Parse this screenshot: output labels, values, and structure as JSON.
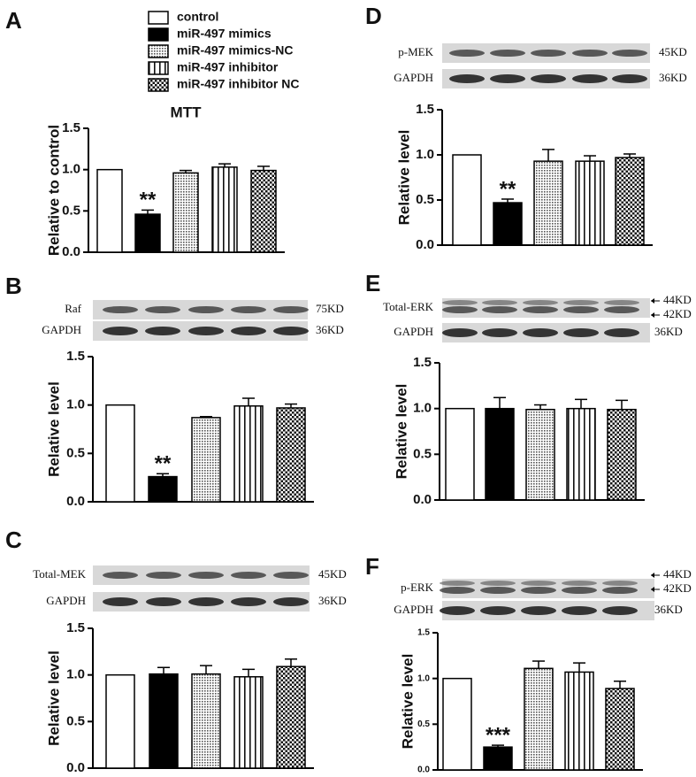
{
  "legend": [
    "control",
    "miR-497 mimics",
    "miR-497 mimics-NC",
    "miR-497 inhibitor",
    "miR-497 inhibitor NC"
  ],
  "chart_data": [
    {
      "type": "bar",
      "label": "A",
      "title": "MTT",
      "ylabel": "Relative to control",
      "values": [
        1.0,
        0.46,
        0.96,
        1.03,
        0.99
      ],
      "errors": [
        null,
        0.05,
        0.03,
        0.04,
        0.05
      ],
      "annotations": [
        null,
        "**",
        null,
        null,
        null
      ],
      "ylim": [
        0,
        1.5
      ],
      "yticks": [
        {
          "value": 0,
          "label": "0.0"
        },
        {
          "value": 0.5,
          "label": "0.5"
        },
        {
          "value": 1,
          "label": "1.0"
        },
        {
          "value": 1.5,
          "label": "1.5"
        }
      ]
    },
    {
      "type": "bar",
      "label": "B",
      "ylabel": "Relative level",
      "blot": [
        {
          "label": "Raf",
          "sizes": [
            "75KD"
          ]
        },
        {
          "label": "GAPDH",
          "sizes": [
            "36KD"
          ]
        }
      ],
      "values": [
        1.0,
        0.26,
        0.87,
        0.99,
        0.97
      ],
      "errors": [
        null,
        0.03,
        0.01,
        0.08,
        0.04
      ],
      "annotations": [
        null,
        "**",
        null,
        null,
        null
      ],
      "ylim": [
        0,
        1.5
      ],
      "yticks": [
        {
          "value": 0,
          "label": "0.0"
        },
        {
          "value": 0.5,
          "label": "0.5"
        },
        {
          "value": 1,
          "label": "1.0"
        },
        {
          "value": 1.5,
          "label": "1.5"
        }
      ]
    },
    {
      "type": "bar",
      "label": "C",
      "ylabel": "Relative level",
      "blot": [
        {
          "label": "Total-MEK",
          "sizes": [
            "45KD"
          ]
        },
        {
          "label": "GAPDH",
          "sizes": [
            "36KD"
          ]
        }
      ],
      "values": [
        1.0,
        1.01,
        1.01,
        0.98,
        1.09
      ],
      "errors": [
        null,
        0.07,
        0.09,
        0.08,
        0.08
      ],
      "ylim": [
        0,
        1.5
      ],
      "yticks": [
        {
          "value": 0,
          "label": "0.0"
        },
        {
          "value": 0.5,
          "label": "0.5"
        },
        {
          "value": 1,
          "label": "1.0"
        },
        {
          "value": 1.5,
          "label": "1.5"
        }
      ]
    },
    {
      "type": "bar",
      "label": "D",
      "ylabel": "Relative level",
      "blot": [
        {
          "label": "p-MEK",
          "sizes": [
            "45KD"
          ]
        },
        {
          "label": "GAPDH",
          "sizes": [
            "36KD"
          ]
        }
      ],
      "values": [
        1.0,
        0.47,
        0.93,
        0.93,
        0.97
      ],
      "errors": [
        null,
        0.04,
        0.13,
        0.06,
        0.04
      ],
      "annotations": [
        null,
        "**",
        null,
        null,
        null
      ],
      "ylim": [
        0,
        1.5
      ],
      "yticks": [
        {
          "value": 0,
          "label": "0.0"
        },
        {
          "value": 0.5,
          "label": "0.5"
        },
        {
          "value": 1,
          "label": "1.0"
        },
        {
          "value": 1.5,
          "label": "1.5"
        }
      ]
    },
    {
      "type": "bar",
      "label": "E",
      "ylabel": "Relative level",
      "blot": [
        {
          "label": "Total-ERK",
          "sizes": [
            "44KD",
            "42KD"
          ]
        },
        {
          "label": "GAPDH",
          "sizes": [
            "36KD"
          ]
        }
      ],
      "values": [
        1.0,
        1.0,
        0.99,
        1.0,
        0.99
      ],
      "errors": [
        null,
        0.12,
        0.05,
        0.1,
        0.1
      ],
      "ylim": [
        0,
        1.5
      ],
      "yticks": [
        {
          "value": 0,
          "label": "0.0"
        },
        {
          "value": 0.5,
          "label": "0.5"
        },
        {
          "value": 1,
          "label": "1.0"
        },
        {
          "value": 1.5,
          "label": "1.5"
        }
      ]
    },
    {
      "type": "bar",
      "label": "F",
      "ylabel": "Relative level",
      "blot": [
        {
          "label": "p-ERK",
          "sizes": [
            "44KD",
            "42KD"
          ]
        },
        {
          "label": "GAPDH",
          "sizes": [
            "36KD"
          ]
        }
      ],
      "values": [
        1.0,
        0.25,
        1.11,
        1.07,
        0.89
      ],
      "errors": [
        null,
        0.02,
        0.08,
        0.1,
        0.08
      ],
      "annotations": [
        null,
        "***",
        null,
        null,
        null
      ],
      "ylim": [
        0,
        1.5
      ],
      "yticks": [
        {
          "value": 0,
          "label": "0.0"
        },
        {
          "value": 0.5,
          "label": "0.5"
        },
        {
          "value": 1,
          "label": "1.0"
        },
        {
          "value": 1.5,
          "label": "1.5"
        }
      ]
    }
  ]
}
